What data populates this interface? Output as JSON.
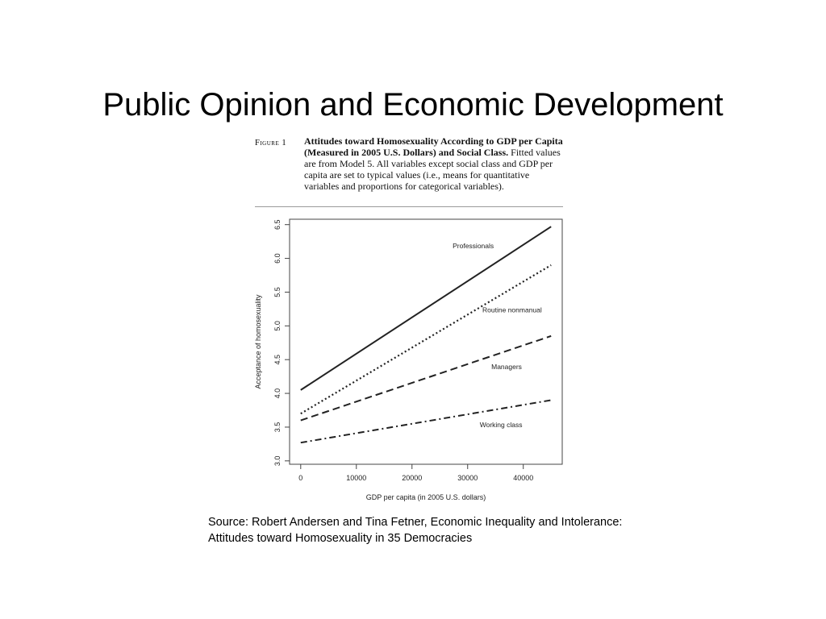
{
  "slide": {
    "title": "Public Opinion and Economic Development"
  },
  "figure": {
    "label": "Figure 1",
    "caption_bold": "Attitudes toward Homosexuality According to GDP per Capita (Measured in 2005 U.S. Dollars) and Social Class.",
    "caption_text": "Fitted values are from Model 5. All variables except social class and GDP per capita are set to typical values (i.e., means for quantitative variables and proportions for categorical variables)."
  },
  "source": {
    "line1": "Source: Robert Andersen and Tina Fetner, Economic Inequality and Intolerance:",
    "line2": "Attitudes toward Homosexuality in 35 Democracies"
  },
  "chart_data": {
    "type": "line",
    "title": "",
    "xlabel": "GDP per capita (in 2005 U.S. dollars)",
    "ylabel": "Acceptance of homosexuality",
    "xlim": [
      -2000,
      47000
    ],
    "ylim": [
      2.95,
      6.58
    ],
    "x_ticks": [
      0,
      10000,
      20000,
      30000,
      40000
    ],
    "x_tick_labels": [
      "0",
      "10000",
      "20000",
      "30000",
      "40000"
    ],
    "y_ticks": [
      3.0,
      3.5,
      4.0,
      4.5,
      5.0,
      5.5,
      6.0,
      6.5
    ],
    "y_tick_labels": [
      "3.0",
      "3.5",
      "4.0",
      "4.5",
      "5.0",
      "5.5",
      "6.0",
      "6.5"
    ],
    "grid": false,
    "legend": "inline labels",
    "series": [
      {
        "name": "Professionals",
        "x": [
          0,
          45000
        ],
        "y": [
          4.05,
          6.47
        ],
        "style": "solid",
        "color": "#222222"
      },
      {
        "name": "Routine nonmanual",
        "x": [
          0,
          45000
        ],
        "y": [
          3.7,
          5.9
        ],
        "style": "dotted",
        "color": "#222222"
      },
      {
        "name": "Managers",
        "x": [
          0,
          45000
        ],
        "y": [
          3.6,
          4.85
        ],
        "style": "dashed",
        "color": "#222222"
      },
      {
        "name": "Working class",
        "x": [
          0,
          45000
        ],
        "y": [
          3.27,
          3.9
        ],
        "style": "dashdot",
        "color": "#222222"
      }
    ],
    "annotations": [
      {
        "text": "Professionals",
        "x": 31000,
        "y": 6.15
      },
      {
        "text": "Routine nonmanual",
        "x": 38000,
        "y": 5.2
      },
      {
        "text": "Managers",
        "x": 37000,
        "y": 4.36
      },
      {
        "text": "Working class",
        "x": 36000,
        "y": 3.5
      }
    ]
  }
}
